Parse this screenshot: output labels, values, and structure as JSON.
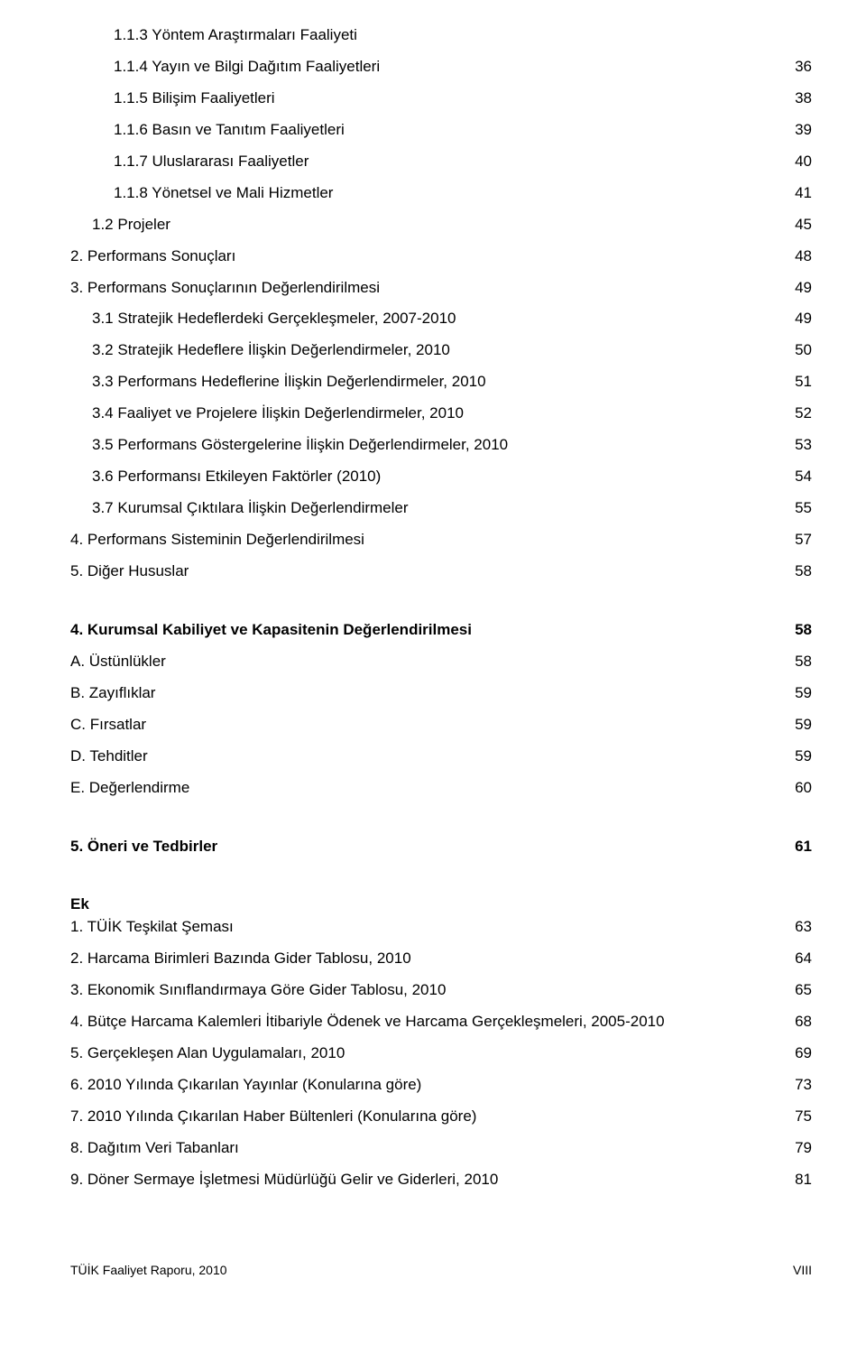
{
  "section1": [
    {
      "label": "1.1.3 Yöntem Araştırmaları Faaliyeti",
      "page": "",
      "indent": 2
    },
    {
      "label": "1.1.4 Yayın ve Bilgi Dağıtım Faaliyetleri",
      "page": "36",
      "indent": 2
    },
    {
      "label": "1.1.5 Bilişim Faaliyetleri",
      "page": "38",
      "indent": 2
    },
    {
      "label": "1.1.6 Basın ve Tanıtım Faaliyetleri",
      "page": "39",
      "indent": 2
    },
    {
      "label": "1.1.7 Uluslararası Faaliyetler",
      "page": "40",
      "indent": 2
    },
    {
      "label": "1.1.8 Yönetsel ve Mali Hizmetler",
      "page": "41",
      "indent": 2
    },
    {
      "label": "1.2 Projeler",
      "page": "45",
      "indent": 1
    },
    {
      "label": "2. Performans Sonuçları",
      "page": "48",
      "indent": 0
    },
    {
      "label": "3. Performans Sonuçlarının Değerlendirilmesi",
      "page": "49",
      "indent": 0
    },
    {
      "label": "3.1 Stratejik Hedeflerdeki Gerçekleşmeler, 2007-2010",
      "page": "49",
      "indent": 1
    },
    {
      "label": "3.2 Stratejik Hedeflere İlişkin Değerlendirmeler, 2010",
      "page": "50",
      "indent": 1
    },
    {
      "label": "3.3 Performans Hedeflerine İlişkin Değerlendirmeler, 2010",
      "page": "51",
      "indent": 1
    },
    {
      "label": "3.4 Faaliyet ve Projelere İlişkin Değerlendirmeler, 2010",
      "page": "52",
      "indent": 1
    },
    {
      "label": "3.5 Performans Göstergelerine İlişkin Değerlendirmeler, 2010",
      "page": "53",
      "indent": 1
    },
    {
      "label": "3.6 Performansı Etkileyen Faktörler (2010)",
      "page": "54",
      "indent": 1
    },
    {
      "label": "3.7 Kurumsal Çıktılara İlişkin Değerlendirmeler",
      "page": "55",
      "indent": 1
    },
    {
      "label": "4. Performans Sisteminin Değerlendirilmesi",
      "page": "57",
      "indent": 0
    },
    {
      "label": "5. Diğer Hususlar",
      "page": "58",
      "indent": 0
    }
  ],
  "section2_header": {
    "label": "4. Kurumsal Kabiliyet ve Kapasitenin Değerlendirilmesi",
    "page": "58"
  },
  "section2": [
    {
      "label": "A. Üstünlükler",
      "page": "58"
    },
    {
      "label": "B. Zayıflıklar",
      "page": "59"
    },
    {
      "label": "C. Fırsatlar",
      "page": "59"
    },
    {
      "label": "D. Tehditler",
      "page": "59"
    },
    {
      "label": "E. Değerlendirme",
      "page": "60"
    }
  ],
  "section3_header": {
    "label": "5. Öneri ve  Tedbirler",
    "page": "61"
  },
  "ek_label": "Ek",
  "section4": [
    {
      "label": "1. TÜİK Teşkilat Şeması",
      "page": "63"
    },
    {
      "label": "2. Harcama Birimleri Bazında Gider Tablosu, 2010",
      "page": "64"
    },
    {
      "label": "3. Ekonomik Sınıflandırmaya Göre Gider Tablosu, 2010",
      "page": "65"
    },
    {
      "label": "4. Bütçe Harcama Kalemleri İtibariyle Ödenek ve Harcama Gerçekleşmeleri, 2005-2010",
      "page": "68"
    },
    {
      "label": "5. Gerçekleşen Alan Uygulamaları, 2010",
      "page": "69"
    },
    {
      "label": "6. 2010 Yılında Çıkarılan Yayınlar (Konularına göre)",
      "page": "73"
    },
    {
      "label": "7. 2010 Yılında Çıkarılan Haber Bültenleri (Konularına göre)",
      "page": "75"
    },
    {
      "label": "8. Dağıtım Veri Tabanları",
      "page": "79"
    },
    {
      "label": "9. Döner Sermaye İşletmesi Müdürlüğü Gelir ve Giderleri, 2010",
      "page": "81"
    }
  ],
  "footer": {
    "left": "TÜİK  Faaliyet Raporu, 2010",
    "right": "VIII"
  }
}
